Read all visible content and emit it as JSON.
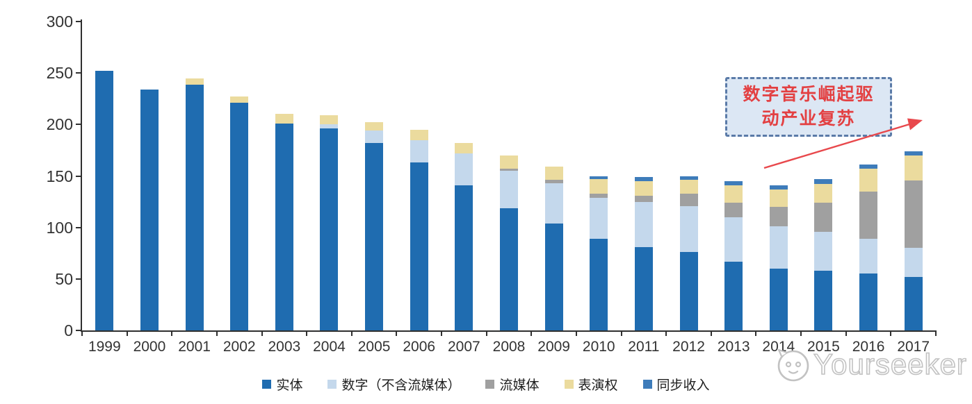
{
  "chart_data": {
    "type": "bar",
    "stacked": true,
    "title": "",
    "xlabel": "",
    "ylabel": "",
    "ylim": [
      0,
      300
    ],
    "yticks": [
      0,
      50,
      100,
      150,
      200,
      250,
      300
    ],
    "grid": false,
    "legend_position": "bottom",
    "categories": [
      "1999",
      "2000",
      "2001",
      "2002",
      "2003",
      "2004",
      "2005",
      "2006",
      "2007",
      "2008",
      "2009",
      "2010",
      "2011",
      "2012",
      "2013",
      "2014",
      "2015",
      "2016",
      "2017"
    ],
    "series": [
      {
        "name": "实体",
        "color": "#1f6cb0",
        "values": [
          252,
          234,
          239,
          221,
          201,
          196,
          182,
          163,
          141,
          119,
          104,
          89,
          81,
          76,
          67,
          60,
          58,
          55,
          52
        ]
      },
      {
        "name": "数字（不含流媒体）",
        "color": "#c4d8ec",
        "values": [
          0,
          0,
          0,
          0,
          0,
          4,
          12,
          22,
          31,
          36,
          39,
          40,
          44,
          45,
          43,
          41,
          38,
          34,
          28
        ]
      },
      {
        "name": "流媒体",
        "color": "#a0a0a0",
        "values": [
          0,
          0,
          0,
          0,
          0,
          0,
          0,
          0,
          0,
          2,
          3,
          4,
          6,
          12,
          14,
          19,
          28,
          46,
          66
        ]
      },
      {
        "name": "表演权",
        "color": "#ebdb9e",
        "values": [
          0,
          0,
          6,
          6,
          9,
          9,
          8,
          10,
          10,
          13,
          13,
          14,
          14,
          13,
          17,
          17,
          18,
          22,
          24
        ]
      },
      {
        "name": "同步收入",
        "color": "#3e7cba",
        "values": [
          0,
          0,
          0,
          0,
          0,
          0,
          0,
          0,
          0,
          0,
          0,
          3,
          4,
          4,
          4,
          4,
          5,
          4,
          4
        ]
      }
    ],
    "totals": [
      252,
      234,
      245,
      227,
      210,
      209,
      202,
      195,
      182,
      170,
      159,
      150,
      149,
      150,
      145,
      141,
      147,
      161,
      174
    ]
  },
  "annotation": {
    "line1": "数字音乐崛起驱",
    "line2": "动产业复苏",
    "text_color": "#e34042",
    "border_color": "#5b7ba8",
    "fill_color": "#dce7f4",
    "arrow_color": "#e8484c"
  },
  "watermark": {
    "text": "Yourseeker"
  }
}
